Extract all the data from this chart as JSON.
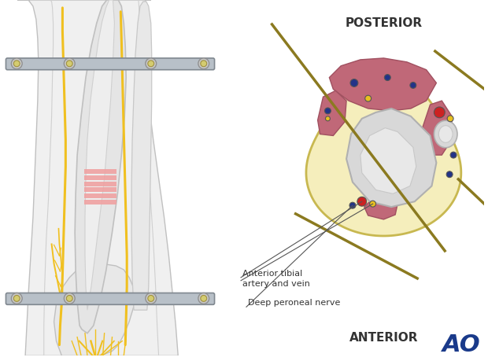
{
  "bg_color": "#ffffff",
  "posterior_label": "POSTERIOR",
  "anterior_label": "ANTERIOR",
  "label1": "Anterior tibial",
  "label2": "artery and vein",
  "label3": "Deep peroneal nerve",
  "ao_text": "AO",
  "fixator_bar_color": "#b8c0c8",
  "fixator_bar_outline": "#808890",
  "nerve_color": "#f0c020",
  "fracture_color": "#f0a0a0",
  "wire_color": "#8B7A20",
  "cross_section_outer_fill": "#f5eebc",
  "cross_section_outer_outline": "#c8b850",
  "muscle_pink": "#c06878",
  "muscle_outline": "#a05060",
  "bone_gray_fill": "#d8d8d8",
  "bone_gray_inner": "#e8e8e8",
  "bone_outline": "#b0b0b0",
  "dot_red": "#cc2222",
  "dot_blue": "#223388",
  "dot_yellow": "#e8c020",
  "text_color": "#333333",
  "ao_color": "#1a3a8a",
  "leg_fill": "#f0f0f0",
  "leg_outline": "#c0c0c0",
  "tibia_fill": "#e5e5e5",
  "tibia_outline": "#c0c0c0"
}
